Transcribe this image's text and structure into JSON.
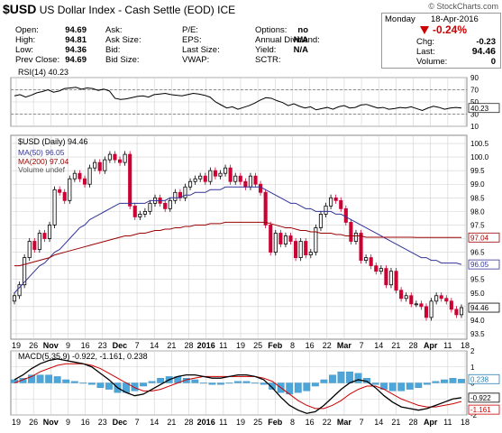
{
  "header": {
    "symbol": "$USD",
    "name": "US Dollar Index - Cash Settle (EOD)",
    "exchange": "ICE",
    "watermark": "© StockCharts.com"
  },
  "quote": {
    "day": "Monday",
    "date": "18-Apr-2016",
    "pct_change": "-0.24%",
    "chg_label": "Chg:",
    "chg": "-0.23",
    "last_label": "Last:",
    "last": "94.46",
    "volume_label": "Volume:",
    "volume": "0",
    "fields": [
      {
        "label": "Open:",
        "value": "94.69"
      },
      {
        "label": "High:",
        "value": "94.81"
      },
      {
        "label": "Low:",
        "value": "94.36"
      },
      {
        "label": "Prev Close:",
        "value": "94.69"
      },
      {
        "label": "Ask:",
        "value": ""
      },
      {
        "label": "Ask Size:",
        "value": ""
      },
      {
        "label": "Bid:",
        "value": ""
      },
      {
        "label": "Bid Size:",
        "value": ""
      },
      {
        "label": "P/E:",
        "value": ""
      },
      {
        "label": "EPS:",
        "value": ""
      },
      {
        "label": "Last Size:",
        "value": ""
      },
      {
        "label": "VWAP:",
        "value": ""
      },
      {
        "label": "Options:",
        "value": "no"
      },
      {
        "label": "Annual Dividend:",
        "value": "N/A"
      },
      {
        "label": "Yield:",
        "value": "N/A"
      },
      {
        "label": "SCTR:",
        "value": ""
      }
    ]
  },
  "colors": {
    "up": "#000000",
    "down": "#cc0033",
    "ma50": "#333399",
    "ma200": "#990000",
    "rsi": "#000000",
    "macd": "#000000",
    "signal": "#cc0000",
    "hist": "#4da6d9",
    "grid": "#d0d0d0"
  },
  "chart_data": [
    {
      "type": "line",
      "title": "RSI(14) 40.23",
      "ylim": [
        10,
        90
      ],
      "yticks": [
        90,
        70,
        50,
        30,
        10
      ],
      "guides": [
        70,
        30
      ],
      "last_label": "40.23",
      "values": [
        60,
        62,
        58,
        61,
        65,
        67,
        70,
        66,
        68,
        72,
        73,
        74,
        71,
        73,
        72,
        69,
        71,
        68,
        56,
        54,
        55,
        57,
        59,
        60,
        58,
        62,
        63,
        64,
        62,
        61,
        60,
        62,
        64,
        63,
        61,
        58,
        50,
        45,
        40,
        42,
        38,
        41,
        44,
        48,
        53,
        57,
        56,
        52,
        49,
        44,
        47,
        43,
        40,
        42,
        37,
        39,
        41,
        38,
        42,
        44,
        40,
        41,
        45,
        46,
        43,
        40,
        41,
        38,
        39,
        41,
        40,
        42,
        39,
        36,
        40,
        43,
        41,
        38,
        40,
        41,
        40
      ]
    },
    {
      "type": "candlestick",
      "title": "$USD (Daily) 94.46",
      "legend": [
        "$USD (Daily) 94.46",
        "MA(50) 96.05",
        "MA(200) 97.04",
        "Volume undef"
      ],
      "ylim": [
        93.3,
        100.8
      ],
      "yticks": [
        100.5,
        100.0,
        99.5,
        99.0,
        98.5,
        98.0,
        97.5,
        97.0,
        96.5,
        96.0,
        95.5,
        95.0,
        94.5,
        94.0,
        93.5
      ],
      "x_tick_labels": [
        "19",
        "26",
        "Nov",
        "9",
        "16",
        "23",
        "Dec",
        "7",
        "14",
        "21",
        "28",
        "2016",
        "11",
        "19",
        "25",
        "Feb",
        "8",
        "16",
        "22",
        "Mar",
        "7",
        "14",
        "21",
        "28",
        "Apr",
        "11",
        "18"
      ],
      "last_labels": {
        "ma200": "97.04",
        "ma50": "96.05",
        "close": "94.46"
      },
      "close": [
        94.9,
        95.3,
        96.3,
        96.9,
        96.6,
        97.2,
        97.0,
        97.5,
        98.8,
        98.7,
        98.4,
        99.2,
        99.4,
        99.2,
        99.0,
        99.6,
        99.8,
        99.5,
        99.9,
        100.1,
        99.9,
        99.8,
        100.1,
        98.2,
        97.8,
        97.9,
        98.0,
        98.3,
        98.5,
        98.3,
        98.1,
        98.4,
        98.7,
        98.5,
        98.9,
        99.1,
        99.2,
        99.3,
        99.1,
        99.5,
        99.3,
        99.4,
        99.6,
        99.1,
        99.3,
        99.1,
        98.9,
        99.3,
        99.0,
        98.7,
        97.5,
        96.5,
        97.2,
        96.8,
        97.1,
        96.9,
        96.3,
        96.9,
        96.4,
        96.5,
        97.4,
        97.9,
        98.2,
        98.5,
        98.4,
        98.1,
        97.6,
        96.9,
        97.2,
        96.2,
        96.3,
        96.0,
        95.8,
        95.9,
        95.3,
        95.8,
        95.1,
        94.8,
        94.9,
        94.6,
        94.6,
        94.5,
        94.1,
        94.7,
        94.9,
        94.8,
        94.7,
        94.4,
        94.2,
        94.46
      ],
      "ma50": [
        95.0,
        95.2,
        95.4,
        95.6,
        95.8,
        96.0,
        96.1,
        96.3,
        96.5,
        96.6,
        96.8,
        97.0,
        97.2,
        97.4,
        97.5,
        97.7,
        97.8,
        97.9,
        98.0,
        98.1,
        98.2,
        98.3,
        98.3,
        98.3,
        98.3,
        98.3,
        98.3,
        98.4,
        98.4,
        98.4,
        98.4,
        98.5,
        98.5,
        98.5,
        98.6,
        98.6,
        98.7,
        98.7,
        98.7,
        98.8,
        98.8,
        98.8,
        98.9,
        98.9,
        98.9,
        98.9,
        98.9,
        98.9,
        98.9,
        98.9,
        98.8,
        98.7,
        98.6,
        98.5,
        98.4,
        98.3,
        98.3,
        98.2,
        98.1,
        98.1,
        98.0,
        98.0,
        98.0,
        98.0,
        97.9,
        97.9,
        97.8,
        97.7,
        97.6,
        97.5,
        97.4,
        97.3,
        97.2,
        97.1,
        97.0,
        96.9,
        96.8,
        96.7,
        96.6,
        96.5,
        96.4,
        96.3,
        96.3,
        96.2,
        96.2,
        96.1,
        96.1,
        96.1,
        96.1,
        96.05
      ],
      "ma200": [
        96.0,
        96.0,
        96.05,
        96.1,
        96.15,
        96.2,
        96.25,
        96.3,
        96.4,
        96.45,
        96.5,
        96.55,
        96.6,
        96.65,
        96.7,
        96.75,
        96.8,
        96.85,
        96.9,
        96.95,
        97.0,
        97.05,
        97.1,
        97.1,
        97.15,
        97.2,
        97.2,
        97.25,
        97.3,
        97.3,
        97.35,
        97.35,
        97.4,
        97.4,
        97.45,
        97.45,
        97.5,
        97.5,
        97.5,
        97.55,
        97.55,
        97.55,
        97.6,
        97.6,
        97.6,
        97.6,
        97.6,
        97.6,
        97.6,
        97.6,
        97.6,
        97.55,
        97.5,
        97.45,
        97.4,
        97.4,
        97.35,
        97.3,
        97.3,
        97.25,
        97.25,
        97.2,
        97.2,
        97.2,
        97.15,
        97.15,
        97.1,
        97.1,
        97.1,
        97.1,
        97.05,
        97.05,
        97.05,
        97.05,
        97.05,
        97.05,
        97.05,
        97.05,
        97.05,
        97.05,
        97.04,
        97.04,
        97.04,
        97.04,
        97.04,
        97.04,
        97.04,
        97.04,
        97.04,
        97.04
      ]
    },
    {
      "type": "line",
      "title": "MACD(5,35,9) -0.922, -1.161, 0.238",
      "ylim": [
        -2,
        2
      ],
      "yticks": [
        2,
        1,
        0,
        -1,
        -2
      ],
      "last_labels": {
        "hist": "0.238",
        "macd": "-0.922",
        "signal": "-1.161"
      },
      "x_tick_labels": [
        "19",
        "26",
        "Nov",
        "9",
        "16",
        "23",
        "Dec",
        "7",
        "14",
        "21",
        "28",
        "2016",
        "11",
        "19",
        "25",
        "Feb",
        "8",
        "16",
        "22",
        "Mar",
        "7",
        "14",
        "21",
        "28",
        "Apr",
        "11",
        "18"
      ],
      "macd": [
        0.2,
        0.5,
        0.9,
        1.2,
        1.4,
        1.5,
        1.4,
        1.3,
        1.2,
        1.0,
        0.6,
        0.2,
        -0.3,
        -0.6,
        -0.8,
        -0.7,
        -0.4,
        -0.1,
        0.2,
        0.4,
        0.5,
        0.5,
        0.4,
        0.3,
        0.3,
        0.4,
        0.5,
        0.5,
        0.4,
        0.2,
        -0.3,
        -0.9,
        -1.4,
        -1.7,
        -1.9,
        -1.8,
        -1.4,
        -0.9,
        -0.4,
        0.0,
        0.2,
        0.1,
        -0.3,
        -0.8,
        -1.2,
        -1.5,
        -1.6,
        -1.7,
        -1.6,
        -1.4,
        -1.2,
        -1.0,
        -0.922
      ],
      "signal": [
        0.0,
        0.2,
        0.4,
        0.7,
        0.9,
        1.1,
        1.2,
        1.2,
        1.2,
        1.1,
        0.9,
        0.6,
        0.3,
        0.0,
        -0.3,
        -0.5,
        -0.5,
        -0.4,
        -0.2,
        0.0,
        0.2,
        0.3,
        0.4,
        0.4,
        0.4,
        0.4,
        0.4,
        0.4,
        0.4,
        0.3,
        0.1,
        -0.3,
        -0.7,
        -1.1,
        -1.4,
        -1.6,
        -1.6,
        -1.4,
        -1.1,
        -0.7,
        -0.4,
        -0.2,
        -0.2,
        -0.4,
        -0.7,
        -1.0,
        -1.2,
        -1.4,
        -1.5,
        -1.5,
        -1.4,
        -1.3,
        -1.161
      ],
      "hist": [
        0.2,
        0.3,
        0.5,
        0.5,
        0.5,
        0.4,
        0.2,
        0.1,
        0.0,
        -0.1,
        -0.3,
        -0.4,
        -0.6,
        -0.6,
        -0.5,
        -0.2,
        0.1,
        0.3,
        0.4,
        0.4,
        0.3,
        0.2,
        0.0,
        -0.1,
        -0.1,
        0.0,
        0.1,
        0.1,
        0.0,
        -0.1,
        -0.4,
        -0.6,
        -0.7,
        -0.6,
        -0.5,
        -0.2,
        0.2,
        0.5,
        0.7,
        0.7,
        0.6,
        0.3,
        -0.1,
        -0.4,
        -0.5,
        -0.5,
        -0.4,
        -0.3,
        -0.1,
        0.1,
        0.2,
        0.3,
        0.238
      ]
    }
  ]
}
